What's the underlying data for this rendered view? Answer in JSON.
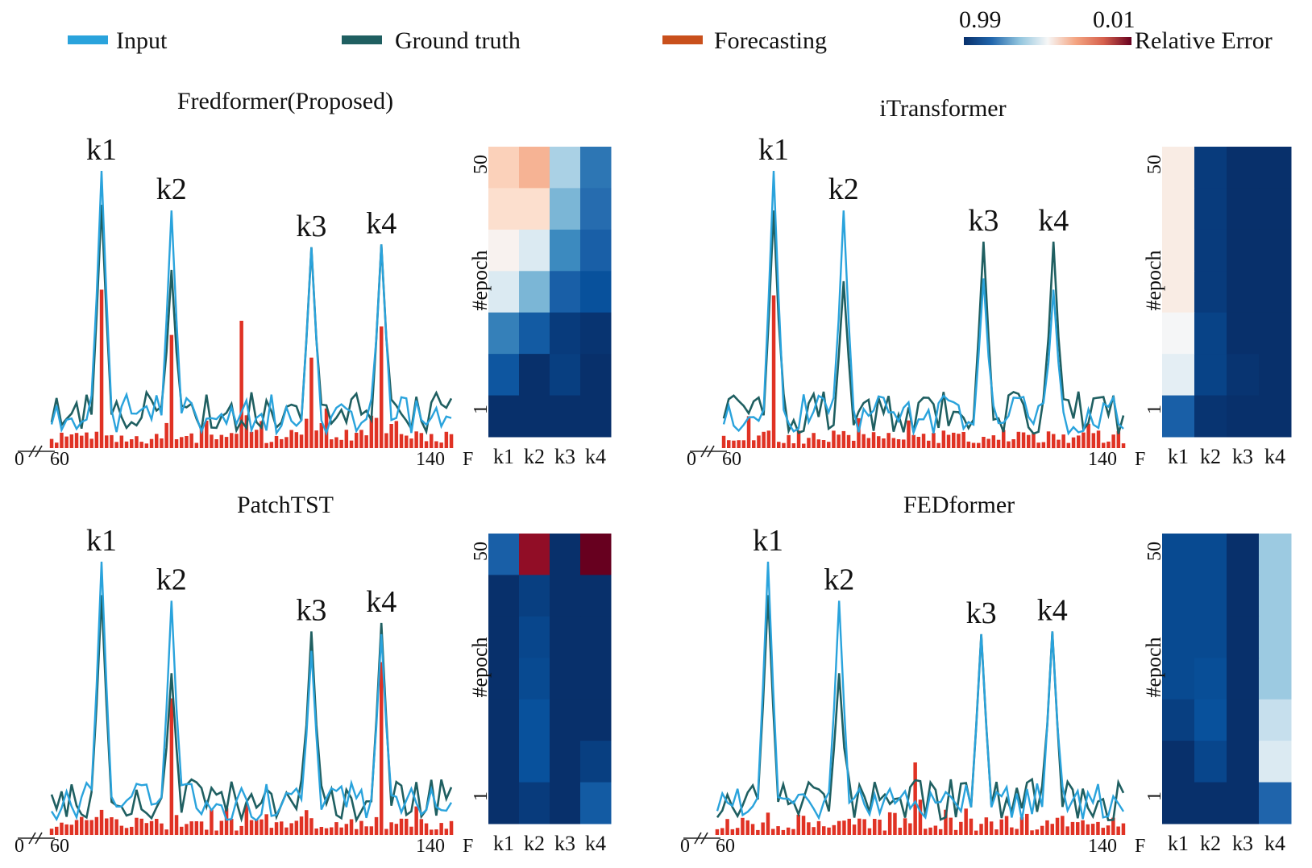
{
  "legend": {
    "items": [
      {
        "label": "Input",
        "color": "#2aa3dc"
      },
      {
        "label": "Ground truth",
        "color": "#1f5f61"
      },
      {
        "label": "Forecasting",
        "color": "#c9501c"
      }
    ],
    "colorbar": {
      "left_label": "0.99",
      "right_label": "0.01",
      "title": "Relative Error",
      "stops": [
        "#08306b",
        "#2166ac",
        "#92c5de",
        "#f7f7f7",
        "#f4a582",
        "#d6604d",
        "#67001f"
      ]
    }
  },
  "colors": {
    "input": "#2aa3dc",
    "truth": "#1f5f61",
    "forecast": "#e03224"
  },
  "colormap": [
    "#08306b",
    "#08519c",
    "#2166ac",
    "#4393c3",
    "#92c5de",
    "#d1e5f0",
    "#f7f7f7",
    "#fddbc7",
    "#f4a582",
    "#d6604d",
    "#b2182b",
    "#67001f"
  ],
  "chart_data": [
    {
      "type": "line",
      "title": "Fredformer(Proposed)",
      "xlabel": "F",
      "x_ticks": [
        "0",
        "60",
        "140"
      ],
      "peak_labels": [
        "k1",
        "k2",
        "k3",
        "k4"
      ],
      "peaks": [
        {
          "x": 70,
          "input": 0.98,
          "truth": 0.86,
          "forecast": 0.56
        },
        {
          "x": 84,
          "input": 0.84,
          "truth": 0.63,
          "forecast": 0.4
        },
        {
          "x": 112,
          "input": 0.71,
          "truth": 0.71,
          "forecast": 0.32
        },
        {
          "x": 126,
          "input": 0.72,
          "truth": 0.72,
          "forecast": 0.43
        }
      ],
      "extra_forecast": [
        {
          "x": 98,
          "value": 0.45
        }
      ],
      "seed": 11,
      "heatmap": {
        "type": "heatmap",
        "x_labels": [
          "k1",
          "k2",
          "k3",
          "k4"
        ],
        "y_label": "#epoch",
        "y_ticks": [
          "50",
          "1"
        ],
        "cells": [
          [
            0.35,
            0.3,
            0.6,
            0.78
          ],
          [
            0.38,
            0.38,
            0.66,
            0.8
          ],
          [
            0.44,
            0.52,
            0.74,
            0.84
          ],
          [
            0.52,
            0.66,
            0.84,
            0.9
          ],
          [
            0.76,
            0.86,
            0.96,
            0.98
          ],
          [
            0.88,
            0.99,
            0.95,
            0.99
          ],
          [
            0.99,
            0.99,
            0.99,
            0.99
          ]
        ]
      }
    },
    {
      "type": "line",
      "title": "iTransformer",
      "xlabel": "F",
      "x_ticks": [
        "0",
        "60",
        "140"
      ],
      "peak_labels": [
        "k1",
        "k2",
        "k3",
        "k4"
      ],
      "peaks": [
        {
          "x": 70,
          "input": 0.98,
          "truth": 0.84,
          "forecast": 0.54
        },
        {
          "x": 84,
          "input": 0.84,
          "truth": 0.59,
          "forecast": 0.06
        },
        {
          "x": 112,
          "input": 0.6,
          "truth": 0.73,
          "forecast": 0.04
        },
        {
          "x": 126,
          "input": 0.56,
          "truth": 0.73,
          "forecast": 0.05
        }
      ],
      "extra_forecast": [],
      "seed": 23,
      "heatmap": {
        "type": "heatmap",
        "x_labels": [
          "k1",
          "k2",
          "k3",
          "k4"
        ],
        "y_label": "#epoch",
        "y_ticks": [
          "50",
          "1"
        ],
        "cells": [
          [
            0.42,
            0.96,
            0.99,
            0.99
          ],
          [
            0.42,
            0.96,
            0.99,
            0.99
          ],
          [
            0.42,
            0.96,
            0.99,
            0.99
          ],
          [
            0.42,
            0.96,
            0.99,
            0.99
          ],
          [
            0.46,
            0.94,
            0.99,
            0.99
          ],
          [
            0.5,
            0.94,
            0.98,
            0.99
          ],
          [
            0.84,
            0.98,
            0.99,
            0.99
          ]
        ]
      }
    },
    {
      "type": "line",
      "title": "PatchTST",
      "xlabel": "F",
      "x_ticks": [
        "0",
        "60",
        "140"
      ],
      "peak_labels": [
        "k1",
        "k2",
        "k3",
        "k4"
      ],
      "peaks": [
        {
          "x": 70,
          "input": 0.98,
          "truth": 0.86,
          "forecast": 0.09
        },
        {
          "x": 84,
          "input": 0.84,
          "truth": 0.58,
          "forecast": 0.49
        },
        {
          "x": 112,
          "input": 0.66,
          "truth": 0.73,
          "forecast": 0.06
        },
        {
          "x": 126,
          "input": 0.72,
          "truth": 0.76,
          "forecast": 0.62
        }
      ],
      "extra_forecast": [],
      "seed": 37,
      "heatmap": {
        "type": "heatmap",
        "x_labels": [
          "k1",
          "k2",
          "k3",
          "k4"
        ],
        "y_label": "#epoch",
        "y_ticks": [
          "50",
          "1"
        ],
        "cells": [
          [
            0.84,
            0.06,
            0.99,
            0.01
          ],
          [
            0.99,
            0.95,
            0.99,
            0.99
          ],
          [
            0.99,
            0.93,
            0.99,
            0.99
          ],
          [
            0.99,
            0.92,
            0.99,
            0.99
          ],
          [
            0.99,
            0.9,
            0.99,
            0.99
          ],
          [
            0.99,
            0.9,
            0.99,
            0.95
          ],
          [
            0.99,
            0.96,
            0.99,
            0.86
          ]
        ]
      }
    },
    {
      "type": "line",
      "title": "FEDformer",
      "xlabel": "F",
      "x_ticks": [
        "0",
        "60",
        "140"
      ],
      "peak_labels": [
        "k1",
        "k2",
        "k3",
        "k4"
      ],
      "peaks": [
        {
          "x": 70,
          "input": 0.98,
          "truth": 0.86,
          "forecast": 0.08
        },
        {
          "x": 84,
          "input": 0.84,
          "truth": 0.58,
          "forecast": 0.05
        },
        {
          "x": 112,
          "input": 0.72,
          "truth": 0.72,
          "forecast": 0.04
        },
        {
          "x": 126,
          "input": 0.73,
          "truth": 0.73,
          "forecast": 0.04
        }
      ],
      "extra_forecast": [
        {
          "x": 99,
          "value": 0.26
        }
      ],
      "seed": 53,
      "heatmap": {
        "type": "heatmap",
        "x_labels": [
          "k1",
          "k2",
          "k3",
          "k4"
        ],
        "y_label": "#epoch",
        "y_ticks": [
          "50",
          "1"
        ],
        "cells": [
          [
            0.92,
            0.92,
            0.99,
            0.62
          ],
          [
            0.92,
            0.92,
            0.99,
            0.62
          ],
          [
            0.92,
            0.92,
            0.99,
            0.62
          ],
          [
            0.92,
            0.91,
            0.99,
            0.62
          ],
          [
            0.95,
            0.9,
            0.99,
            0.56
          ],
          [
            0.99,
            0.93,
            0.99,
            0.52
          ],
          [
            0.99,
            0.99,
            0.99,
            0.82
          ]
        ]
      }
    }
  ]
}
